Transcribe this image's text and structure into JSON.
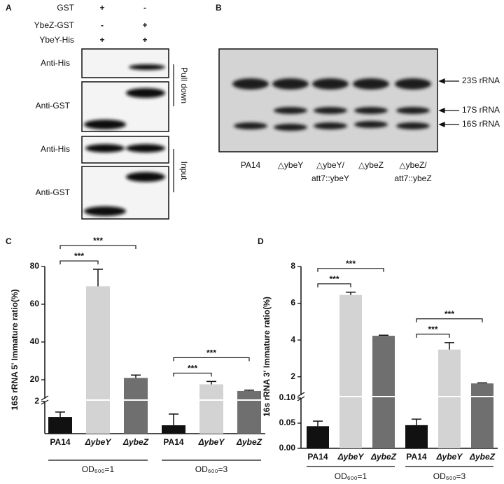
{
  "panel_a": {
    "letter": "A",
    "rows": [
      {
        "label": "GST",
        "signs": [
          "+",
          "-"
        ]
      },
      {
        "label": "YbeZ-GST",
        "signs": [
          "-",
          "+"
        ]
      },
      {
        "label": "YbeY-His",
        "signs": [
          "+",
          "+"
        ]
      }
    ],
    "blots": [
      "Anti-His",
      "Anti-GST",
      "Anti-His",
      "Anti-GST"
    ],
    "groups": [
      "Pull down",
      "Input"
    ]
  },
  "panel_b": {
    "letter": "B",
    "lanes": [
      [
        "PA14"
      ],
      [
        "△ybeY"
      ],
      [
        "△ybeY/",
        "att7::ybeY"
      ],
      [
        "△ybeZ"
      ],
      [
        "△ybeZ/",
        "att7::ybeZ"
      ]
    ],
    "bands": [
      "23S rRNA",
      "17S rRNA",
      "16S rRNA"
    ]
  },
  "chart_data": [
    {
      "type": "bar",
      "panel": "C",
      "ylabel": "16S rRNA 5' Immature ratio(%)",
      "categories": [
        "PA14",
        "ΔybeY",
        "ΔybeZ",
        "PA14",
        "ΔybeY",
        "ΔybeZ"
      ],
      "groups": [
        "OD₆₀₀=1",
        "OD₆₀₀=3"
      ],
      "colors": [
        "#111111",
        "#d3d3d3",
        "#6f6f6f",
        "#111111",
        "#d3d3d3",
        "#6f6f6f"
      ],
      "values": [
        1.04,
        69.5,
        21,
        0.52,
        17.6,
        14.1
      ],
      "errors": [
        0.3,
        9,
        1.5,
        0.7,
        1.5,
        0.4
      ],
      "segments": [
        {
          "ylim": [
            0,
            2
          ],
          "yticks": [
            2
          ]
        },
        {
          "ylim": [
            10,
            80
          ],
          "yticks": [
            20,
            40,
            60,
            80
          ]
        }
      ],
      "brackets": [
        {
          "text": "***",
          "from": 0,
          "to": 1
        },
        {
          "text": "***",
          "from": 0,
          "to": 2
        },
        {
          "text": "***",
          "from": 3,
          "to": 4
        },
        {
          "text": "***",
          "from": 3,
          "to": 5
        }
      ]
    },
    {
      "type": "bar",
      "panel": "D",
      "ylabel": "16s rRNA 3' Immature ratio(%)",
      "categories": [
        "PA14",
        "ΔybeY",
        "ΔybeZ",
        "PA14",
        "ΔybeY",
        "ΔybeZ"
      ],
      "groups": [
        "OD₆₀₀=1",
        "OD₆₀₀=3"
      ],
      "colors": [
        "#111111",
        "#d3d3d3",
        "#6f6f6f",
        "#111111",
        "#d3d3d3",
        "#6f6f6f"
      ],
      "values": [
        0.044,
        6.45,
        4.23,
        0.046,
        3.48,
        1.64
      ],
      "errors": [
        0.01,
        0.15,
        0.03,
        0.012,
        0.38,
        0.03
      ],
      "segments": [
        {
          "ylim": [
            0,
            0.1
          ],
          "yticks": [
            {
              "value": 0,
              "label": "0.00"
            },
            0.05,
            {
              "value": 0.1,
              "label": "0.10"
            }
          ]
        },
        {
          "ylim": [
            1,
            8
          ],
          "yticks": [
            2,
            4,
            6,
            8
          ]
        }
      ],
      "brackets": [
        {
          "text": "***",
          "from": 0,
          "to": 1
        },
        {
          "text": "***",
          "from": 0,
          "to": 2
        },
        {
          "text": "***",
          "from": 3,
          "to": 4
        },
        {
          "text": "***",
          "from": 3,
          "to": 5
        }
      ]
    }
  ]
}
